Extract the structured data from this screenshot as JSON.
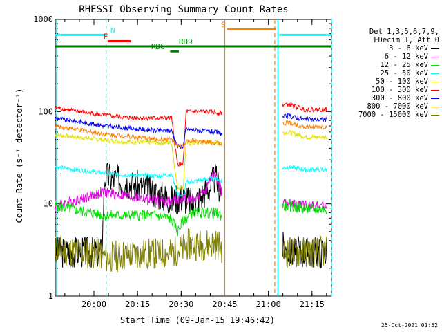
{
  "chart_data": {
    "type": "line",
    "title": "RHESSI Observing Summary Count Rates",
    "xlabel": "Start Time (09-Jan-15 19:46:42)",
    "ylabel": "Count Rate (s⁻¹ detector⁻¹)",
    "yscale": "log",
    "ylim": [
      1,
      1000
    ],
    "xlim_minutes": [
      0,
      95
    ],
    "x_ticks": [
      {
        "t": 13.3,
        "label": "20:00"
      },
      {
        "t": 28.3,
        "label": "20:15"
      },
      {
        "t": 43.3,
        "label": "20:30"
      },
      {
        "t": 58.3,
        "label": "20:45"
      },
      {
        "t": 73.3,
        "label": "21:00"
      },
      {
        "t": 88.3,
        "label": "21:15"
      }
    ],
    "y_ticks": [
      {
        "v": 1,
        "label": "1"
      },
      {
        "v": 10,
        "label": "10"
      },
      {
        "v": 100,
        "label": "100"
      },
      {
        "v": 1000,
        "label": "1000"
      }
    ],
    "legend_header": [
      "Det 1,3,5,6,7,9,",
      "FDecim 1, Att 0"
    ],
    "series": [
      {
        "name": "3 - 6 keV",
        "color": "#000000",
        "points": [
          [
            0,
            3.0
          ],
          [
            16,
            3.0
          ],
          [
            17,
            20
          ],
          [
            25,
            17
          ],
          [
            35,
            13
          ],
          [
            40,
            11
          ],
          [
            44,
            12
          ],
          [
            47,
            10
          ],
          [
            50,
            12
          ],
          [
            53,
            15
          ],
          [
            55,
            19
          ],
          [
            57,
            14
          ],
          [
            80,
            3.0
          ],
          [
            86,
            3.0
          ],
          [
            94,
            3.0
          ]
        ]
      },
      {
        "name": "6 - 12 keV",
        "color": "#e000e0",
        "points": [
          [
            0,
            9.5
          ],
          [
            17,
            13.5
          ],
          [
            25,
            12
          ],
          [
            35,
            11
          ],
          [
            40,
            10.5
          ],
          [
            44,
            11.5
          ],
          [
            47,
            11
          ],
          [
            50,
            12
          ],
          [
            53,
            17
          ],
          [
            55,
            22
          ],
          [
            57,
            14
          ],
          [
            80,
            10
          ],
          [
            86,
            9.5
          ],
          [
            94,
            9.5
          ]
        ]
      },
      {
        "name": "12 - 25 keV",
        "color": "#00e000",
        "points": [
          [
            0,
            9.5
          ],
          [
            17,
            7.5
          ],
          [
            25,
            7.5
          ],
          [
            35,
            7.5
          ],
          [
            40,
            6.8
          ],
          [
            42,
            5
          ],
          [
            44,
            6.5
          ],
          [
            47,
            8
          ],
          [
            50,
            8
          ],
          [
            55,
            8
          ],
          [
            57,
            7.5
          ],
          [
            80,
            9.5
          ],
          [
            86,
            8.8
          ],
          [
            94,
            8.7
          ]
        ]
      },
      {
        "name": "25 - 50 keV",
        "color": "#00ffff",
        "points": [
          [
            0,
            25
          ],
          [
            17,
            21.5
          ],
          [
            25,
            20.5
          ],
          [
            35,
            20
          ],
          [
            40,
            21
          ],
          [
            42,
            13
          ],
          [
            44,
            12
          ],
          [
            45,
            17
          ],
          [
            50,
            18
          ],
          [
            55,
            19
          ],
          [
            57,
            18
          ],
          [
            80,
            25
          ],
          [
            86,
            23.5
          ],
          [
            94,
            23.5
          ]
        ]
      },
      {
        "name": "50 - 100 keV",
        "color": "#e0e000",
        "points": [
          [
            0,
            56
          ],
          [
            17,
            49
          ],
          [
            25,
            47
          ],
          [
            35,
            46
          ],
          [
            40,
            46
          ],
          [
            42,
            15
          ],
          [
            44,
            15
          ],
          [
            45,
            45
          ],
          [
            50,
            46
          ],
          [
            55,
            47
          ],
          [
            57,
            46
          ],
          [
            80,
            60
          ],
          [
            86,
            53
          ],
          [
            94,
            53
          ]
        ]
      },
      {
        "name": "100 - 300 keV",
        "color": "#ff0000",
        "points": [
          [
            0,
            110
          ],
          [
            17,
            91
          ],
          [
            25,
            86
          ],
          [
            35,
            85
          ],
          [
            40,
            85
          ],
          [
            42,
            27
          ],
          [
            44,
            27
          ],
          [
            45,
            100
          ],
          [
            50,
            100
          ],
          [
            55,
            98
          ],
          [
            57,
            97
          ],
          [
            80,
            120
          ],
          [
            86,
            105
          ],
          [
            94,
            105
          ]
        ]
      },
      {
        "name": "300 - 800 keV",
        "color": "#0000ff",
        "points": [
          [
            0,
            85
          ],
          [
            17,
            70
          ],
          [
            25,
            66
          ],
          [
            35,
            62
          ],
          [
            40,
            62
          ],
          [
            42,
            42
          ],
          [
            44,
            42
          ],
          [
            45,
            65
          ],
          [
            50,
            62
          ],
          [
            55,
            60
          ],
          [
            57,
            58
          ],
          [
            80,
            90
          ],
          [
            86,
            82
          ],
          [
            94,
            82
          ]
        ]
      },
      {
        "name": "800 - 7000 keV",
        "color": "#ff8000",
        "points": [
          [
            0,
            70
          ],
          [
            17,
            57
          ],
          [
            25,
            54
          ],
          [
            35,
            50
          ],
          [
            40,
            50
          ],
          [
            42,
            42
          ],
          [
            44,
            42
          ],
          [
            45,
            48
          ],
          [
            50,
            47
          ],
          [
            55,
            46
          ],
          [
            57,
            45
          ],
          [
            80,
            76
          ],
          [
            86,
            68
          ],
          [
            94,
            68
          ]
        ]
      },
      {
        "name": "7000 - 15000 keV",
        "color": "#808000",
        "points": [
          [
            0,
            3.2
          ],
          [
            16,
            2.8
          ],
          [
            17,
            2.6
          ],
          [
            25,
            2.8
          ],
          [
            35,
            2.9
          ],
          [
            40,
            2.9
          ],
          [
            42,
            3.2
          ],
          [
            44,
            3.2
          ],
          [
            45,
            3.6
          ],
          [
            50,
            3.6
          ],
          [
            55,
            3.7
          ],
          [
            57,
            3.4
          ],
          [
            80,
            3.0
          ],
          [
            86,
            3.0
          ],
          [
            94,
            3.0
          ]
        ]
      }
    ],
    "flag_bars": [
      {
        "label": "N",
        "color": "#00ffff",
        "level": 680,
        "t0": 0,
        "t1": 18,
        "label_t": 19,
        "resume_t0": 77,
        "resume_t1": 95
      },
      {
        "label": "F",
        "color": "#ff0000",
        "level": 580,
        "t0": 18,
        "t1": 26,
        "label_t": 16.5
      },
      {
        "label": "S",
        "color": "#ff8000",
        "level": 780,
        "t0": 59,
        "t1": 76,
        "label_t": 57
      },
      {
        "label": "RD9",
        "color": "#008000",
        "level": 510,
        "t0": 0,
        "t1": 95,
        "label_t": 42.5
      },
      {
        "label": "RD6",
        "color": "#008000",
        "level": 450,
        "t0": 39.5,
        "t1": 42.5,
        "label_t": 33
      }
    ],
    "saa_intervals": [
      {
        "color": "#00ffff",
        "t0": 17.5,
        "t1": 76.5
      },
      {
        "color": "#00ffff",
        "t0": 95,
        "t1": 95
      }
    ],
    "night_intervals": [
      {
        "color": "#ff8000",
        "t0": 58.3,
        "t1": 75.5
      }
    ]
  },
  "timestamp": "25-Oct-2021 01:52"
}
